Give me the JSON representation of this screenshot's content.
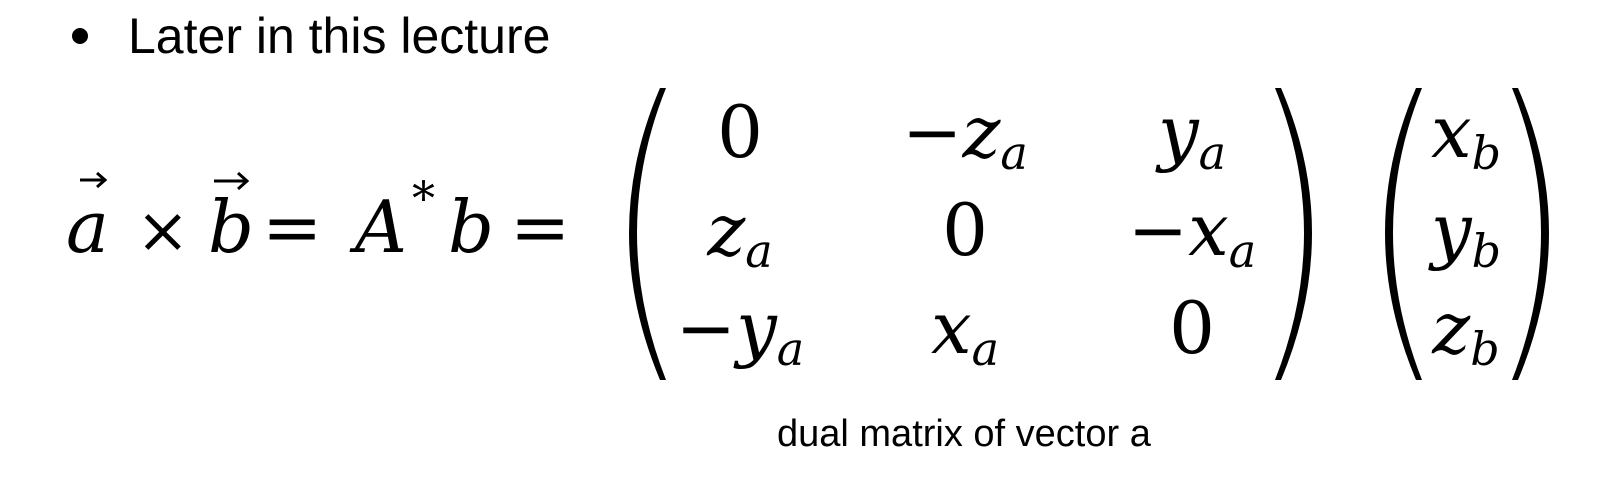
{
  "slide": {
    "bullet": "Later in this lecture"
  },
  "equation": {
    "lhs": {
      "vec_a": "a",
      "times": "×",
      "vec_b": "b",
      "eq1": "=",
      "A": "A",
      "star": "*",
      "b": "b",
      "eq2": "="
    },
    "matrix": [
      [
        {
          "sign": "",
          "base": "0",
          "sub": ""
        },
        {
          "sign": "−",
          "base": "z",
          "sub": "a"
        },
        {
          "sign": "",
          "base": "y",
          "sub": "a"
        }
      ],
      [
        {
          "sign": "",
          "base": "z",
          "sub": "a"
        },
        {
          "sign": "",
          "base": "0",
          "sub": ""
        },
        {
          "sign": "−",
          "base": "x",
          "sub": "a"
        }
      ],
      [
        {
          "sign": "−",
          "base": "y",
          "sub": "a"
        },
        {
          "sign": "",
          "base": "x",
          "sub": "a"
        },
        {
          "sign": "",
          "base": "0",
          "sub": ""
        }
      ]
    ],
    "vector": [
      {
        "base": "x",
        "sub": "b"
      },
      {
        "base": "y",
        "sub": "b"
      },
      {
        "base": "z",
        "sub": "b"
      }
    ]
  },
  "caption": "dual matrix of vector a"
}
